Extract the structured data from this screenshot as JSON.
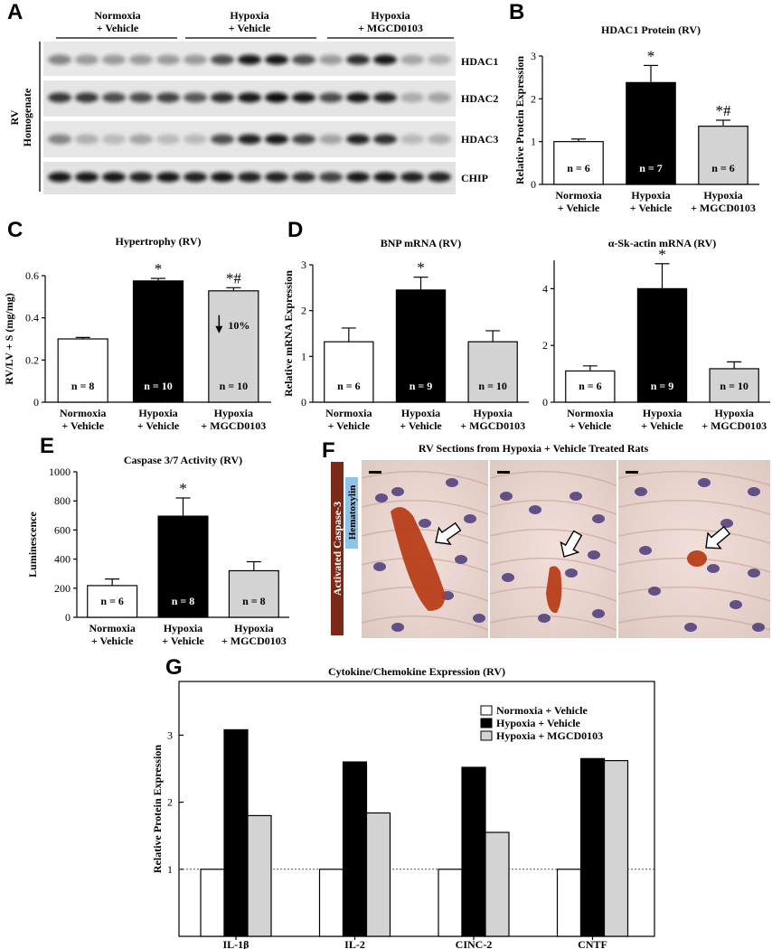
{
  "panel_labels": {
    "A": "A",
    "B": "B",
    "C": "C",
    "D": "D",
    "E": "E",
    "F": "F",
    "G": "G"
  },
  "colors": {
    "normoxia": "#ffffff",
    "hypoxia": "#000000",
    "mgcd": "#d3d3d3",
    "caspase_bg": "#7a2a16",
    "hematoxylin_bg": "#8fc3e8"
  },
  "panelA": {
    "groups": [
      {
        "line1": "Normoxia",
        "line2": "+ Vehicle"
      },
      {
        "line1": "Hypoxia",
        "line2": "+ Vehicle"
      },
      {
        "line1": "Hypoxia",
        "line2": "+ MGCD0103"
      }
    ],
    "side_label_1": "RV",
    "side_label_2": "Homogenate",
    "bands": [
      "HDAC1",
      "HDAC2",
      "HDAC3",
      "CHIP"
    ]
  },
  "panelF": {
    "title": "RV Sections from Hypoxia + Vehicle Treated Rats",
    "stain_1": "Activated Caspase-3",
    "stain_2": "Hematoxylin"
  },
  "chart_data": [
    {
      "id": "B",
      "type": "bar",
      "title": "HDAC1 Protein (RV)",
      "xlabel": "",
      "ylabel": "Relative Protein Expression",
      "ylim": [
        0,
        3
      ],
      "yticks": [
        "0",
        "1",
        "2",
        "3"
      ],
      "categories": [
        [
          "Normoxia",
          "+ Vehicle"
        ],
        [
          "Hypoxia",
          "+ Vehicle"
        ],
        [
          "Hypoxia",
          "+ MGCD0103"
        ]
      ],
      "values": [
        1.0,
        2.38,
        1.36
      ],
      "errors": [
        0.06,
        0.4,
        0.14
      ],
      "n_labels": [
        "n = 6",
        "n = 7",
        "n = 6"
      ],
      "annotations": [
        "",
        "*",
        "*#"
      ],
      "inner_notes": [
        "",
        "",
        ""
      ]
    },
    {
      "id": "C",
      "type": "bar",
      "title": "Hypertrophy (RV)",
      "xlabel": "",
      "ylabel": "RV/LV + S (mg/mg)",
      "ylim": [
        0,
        0.6
      ],
      "yticks": [
        "0",
        "0.2",
        "0.4",
        "0.6"
      ],
      "categories": [
        [
          "Normoxia",
          "+ Vehicle"
        ],
        [
          "Hypoxia",
          "+ Vehicle"
        ],
        [
          "Hypoxia",
          "+ MGCD0103"
        ]
      ],
      "values": [
        0.3,
        0.575,
        0.528
      ],
      "errors": [
        0.007,
        0.012,
        0.015
      ],
      "n_labels": [
        "n = 8",
        "n = 10",
        "n = 10"
      ],
      "annotations": [
        "",
        "*",
        "*#"
      ],
      "inner_notes": [
        "",
        "",
        "10%"
      ]
    },
    {
      "id": "D1",
      "type": "bar",
      "title": "BNP mRNA (RV)",
      "xlabel": "",
      "ylabel": "Relative mRNA Expression",
      "ylim": [
        0,
        3
      ],
      "yticks": [
        "0",
        "1",
        "2",
        "3"
      ],
      "categories": [
        [
          "Normoxia",
          "+ Vehicle"
        ],
        [
          "Hypoxia",
          "+ Vehicle"
        ],
        [
          "Hypoxia",
          "+ MGCD0103"
        ]
      ],
      "values": [
        1.32,
        2.45,
        1.32
      ],
      "errors": [
        0.3,
        0.28,
        0.24
      ],
      "n_labels": [
        "n = 6",
        "n = 9",
        "n = 10"
      ],
      "annotations": [
        "",
        "*",
        ""
      ],
      "inner_notes": [
        "",
        "",
        ""
      ]
    },
    {
      "id": "D2",
      "type": "bar",
      "title": "α-Sk-actin mRNA (RV)",
      "xlabel": "",
      "ylabel": "",
      "ylim": [
        0,
        5
      ],
      "yticks": [
        "0",
        "2",
        "4"
      ],
      "categories": [
        [
          "Normoxia",
          "+ Vehicle"
        ],
        [
          "Hypoxia",
          "+ Vehicle"
        ],
        [
          "Hypoxia",
          "+ MGCD0103"
        ]
      ],
      "values": [
        1.1,
        4.0,
        1.18
      ],
      "errors": [
        0.18,
        0.88,
        0.24
      ],
      "n_labels": [
        "n = 6",
        "n = 9",
        "n = 10"
      ],
      "annotations": [
        "",
        "*",
        ""
      ],
      "inner_notes": [
        "",
        "",
        ""
      ]
    },
    {
      "id": "E",
      "type": "bar",
      "title": "Caspase 3/7 Activity (RV)",
      "xlabel": "",
      "ylabel": "Luminescence",
      "ylim": [
        0,
        1000
      ],
      "yticks": [
        "0",
        "200",
        "400",
        "600",
        "800",
        "1000"
      ],
      "categories": [
        [
          "Normoxia",
          "+ Vehicle"
        ],
        [
          "Hypoxia",
          "+ Vehicle"
        ],
        [
          "Hypoxia",
          "+ MGCD0103"
        ]
      ],
      "values": [
        218,
        695,
        320
      ],
      "errors": [
        45,
        125,
        62
      ],
      "n_labels": [
        "n = 6",
        "n = 8",
        "n = 8"
      ],
      "annotations": [
        "",
        "*",
        ""
      ],
      "inner_notes": [
        "",
        "",
        ""
      ]
    },
    {
      "id": "G",
      "type": "bar",
      "title": "Cytokine/Chemokine Expression (RV)",
      "xlabel": "",
      "ylabel": "Relative Protein Expression",
      "ylim": [
        0,
        3.8
      ],
      "yticks": [
        "1",
        "2",
        "3"
      ],
      "categories": [
        "IL-1β",
        "IL-2",
        "CINC-2",
        "CNTF"
      ],
      "series": [
        {
          "name": "Normoxia + Vehicle",
          "values": [
            1.0,
            1.0,
            1.0,
            1.0
          ]
        },
        {
          "name": "Hypoxia + Vehicle",
          "values": [
            3.08,
            2.6,
            2.52,
            2.65
          ]
        },
        {
          "name": "Hypoxia + MGCD0103",
          "values": [
            1.8,
            1.84,
            1.55,
            2.62
          ]
        }
      ],
      "reference_line": 1,
      "legend": "top-right"
    }
  ]
}
